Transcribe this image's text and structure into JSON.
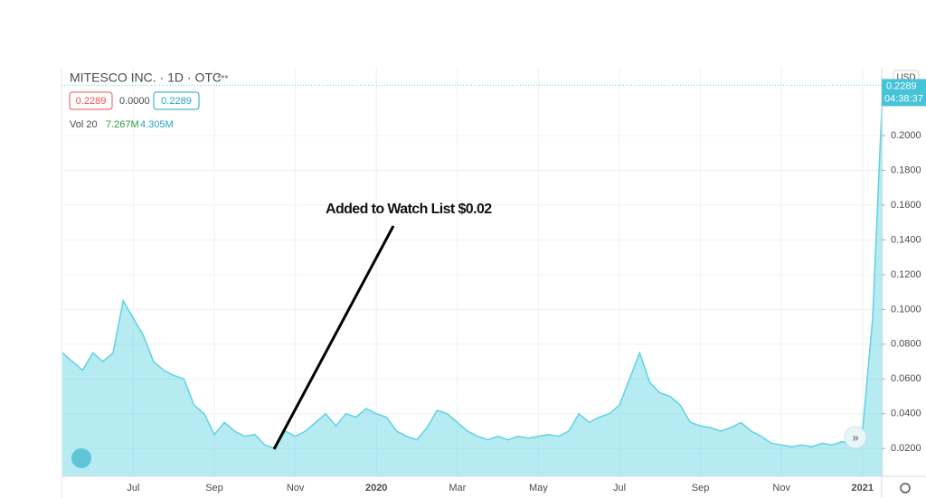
{
  "chart_data": {
    "type": "area",
    "title": "MITESCO INC. · 1D · OTC",
    "ohlc": {
      "open": "0.2289",
      "change": "0.0000",
      "close": "0.2289"
    },
    "volume": {
      "label": "Vol 20",
      "value": "7.267M",
      "average": "4.305M"
    },
    "annotation": "Added to Watch List $0.02",
    "currency": "USD",
    "last_price": {
      "value": 0.2289,
      "label": "0.2289"
    },
    "countdown": "04:38:37",
    "categories": [
      null,
      null,
      null,
      null,
      null,
      null,
      null,
      "Jul",
      null,
      null,
      null,
      null,
      null,
      null,
      null,
      "Sep",
      null,
      null,
      null,
      null,
      null,
      null,
      null,
      "Nov",
      null,
      null,
      null,
      null,
      null,
      null,
      null,
      "2020",
      null,
      null,
      null,
      null,
      null,
      null,
      null,
      "Mar",
      null,
      null,
      null,
      null,
      null,
      null,
      null,
      "May",
      null,
      null,
      null,
      null,
      null,
      null,
      null,
      "Jul",
      null,
      null,
      null,
      null,
      null,
      null,
      null,
      "Sep",
      null,
      null,
      null,
      null,
      null,
      null,
      null,
      "Nov",
      null,
      null,
      null,
      null,
      null,
      null,
      null,
      "2021",
      null,
      null
    ],
    "series": [
      {
        "name": "MITESCO INC.",
        "color": "#5ed3e3",
        "values": [
          0.075,
          0.07,
          0.065,
          0.075,
          0.07,
          0.075,
          0.105,
          0.095,
          0.085,
          0.07,
          0.065,
          0.062,
          0.06,
          0.045,
          0.04,
          0.028,
          0.035,
          0.03,
          0.027,
          0.028,
          0.022,
          0.02,
          0.03,
          0.027,
          0.03,
          0.035,
          0.04,
          0.033,
          0.04,
          0.038,
          0.043,
          0.04,
          0.038,
          0.03,
          0.027,
          0.025,
          0.032,
          0.042,
          0.04,
          0.035,
          0.03,
          0.027,
          0.025,
          0.027,
          0.025,
          0.027,
          0.026,
          0.027,
          0.028,
          0.027,
          0.03,
          0.04,
          0.035,
          0.038,
          0.04,
          0.045,
          0.06,
          0.075,
          0.058,
          0.052,
          0.05,
          0.045,
          0.035,
          0.033,
          0.032,
          0.03,
          0.032,
          0.035,
          0.03,
          0.027,
          0.023,
          0.022,
          0.021,
          0.022,
          0.021,
          0.023,
          0.022,
          0.024,
          0.022,
          0.03,
          0.095,
          0.2289
        ]
      }
    ],
    "ylim": [
      0.004,
      0.239
    ],
    "yticks": [
      {
        "value": 0.02,
        "label": "0.0200"
      },
      {
        "value": 0.04,
        "label": "0.0400"
      },
      {
        "value": 0.06,
        "label": "0.0600"
      },
      {
        "value": 0.08,
        "label": "0.0800"
      },
      {
        "value": 0.1,
        "label": "0.1000"
      },
      {
        "value": 0.12,
        "label": "0.1200"
      },
      {
        "value": 0.14,
        "label": "0.1400"
      },
      {
        "value": 0.16,
        "label": "0.1600"
      },
      {
        "value": 0.18,
        "label": "0.1800"
      },
      {
        "value": 0.2,
        "label": "0.2000"
      }
    ],
    "grid": true
  }
}
